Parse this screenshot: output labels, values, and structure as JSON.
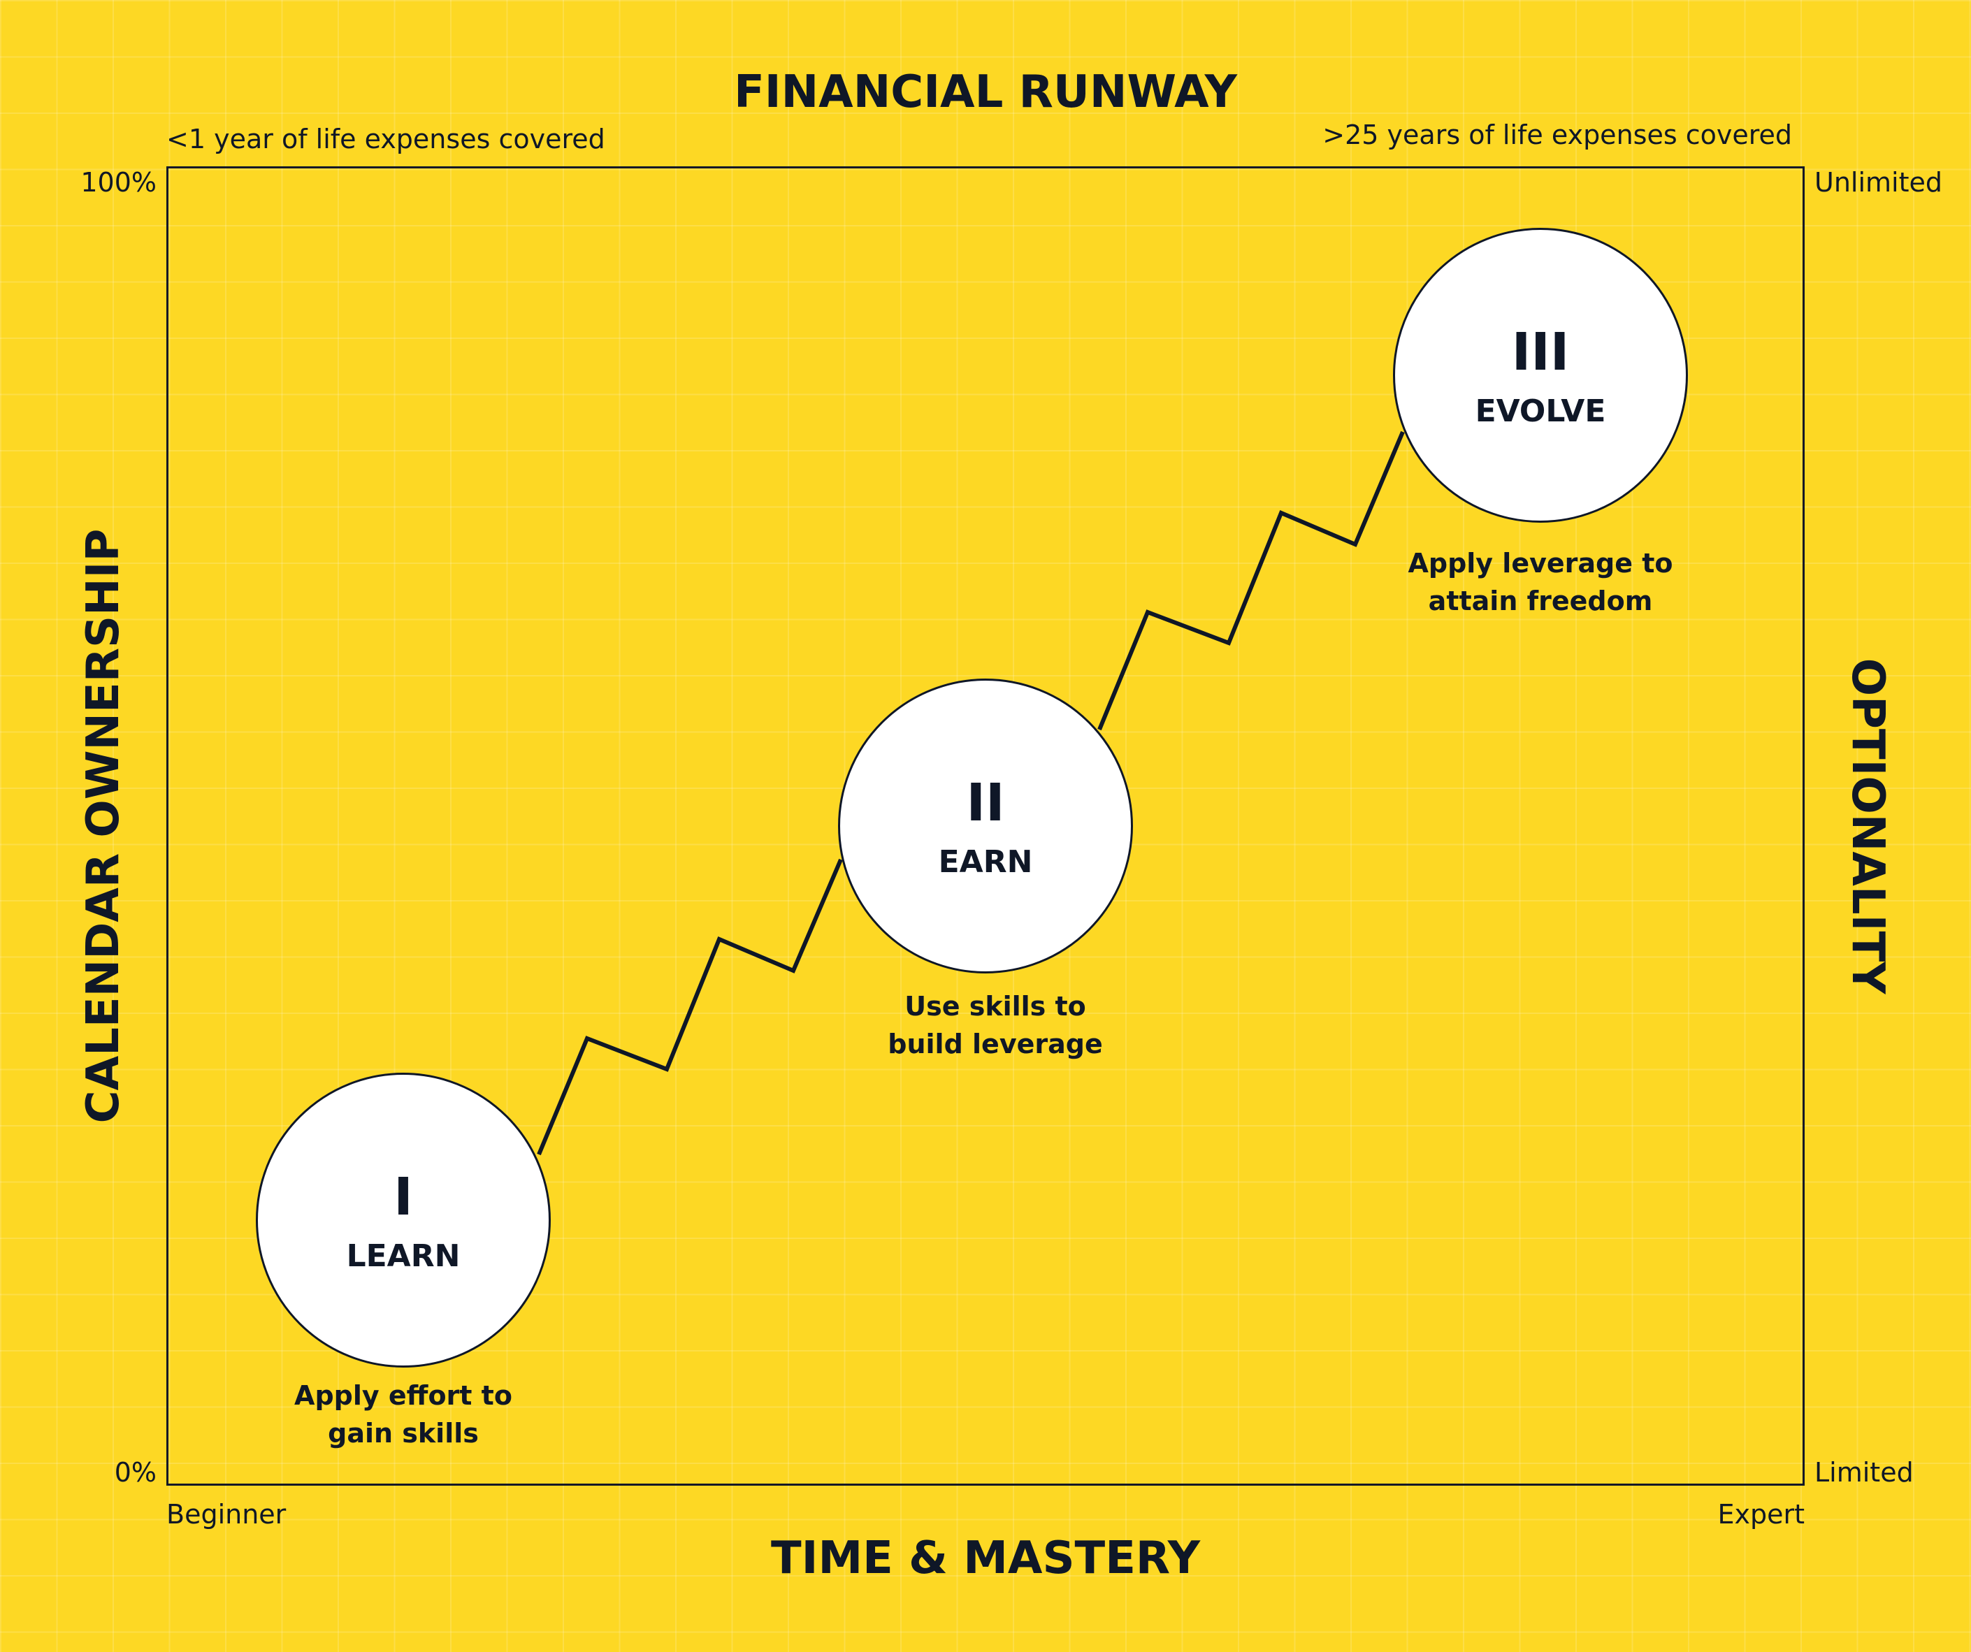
{
  "diagram": {
    "top_title": "FINANCIAL RUNWAY",
    "top_left_note": "<1 year of life expenses covered",
    "top_right_note": ">25 years of life expenses covered",
    "left_axis_title": "CALENDAR OWNERSHIP",
    "right_axis_title": "OPTIONALITY",
    "bottom_axis_title": "TIME & MASTERY",
    "left_ticks": {
      "top": "100%",
      "bottom": "0%"
    },
    "right_ticks": {
      "top": "Unlimited",
      "bottom": "Limited"
    },
    "bottom_ticks": {
      "left": "Beginner",
      "right": "Expert"
    },
    "stages": [
      {
        "numeral": "I",
        "name": "LEARN",
        "caption_line1": "Apply effort to",
        "caption_line2": "gain skills"
      },
      {
        "numeral": "II",
        "name": "EARN",
        "caption_line1": "Use skills to",
        "caption_line2": "build leverage"
      },
      {
        "numeral": "III",
        "name": "EVOLVE",
        "caption_line1": "Apply leverage to",
        "caption_line2": "attain freedom"
      }
    ],
    "colors": {
      "background": "#FDD824",
      "ink": "#0F1727",
      "circle_fill": "#FFFFFF"
    }
  }
}
